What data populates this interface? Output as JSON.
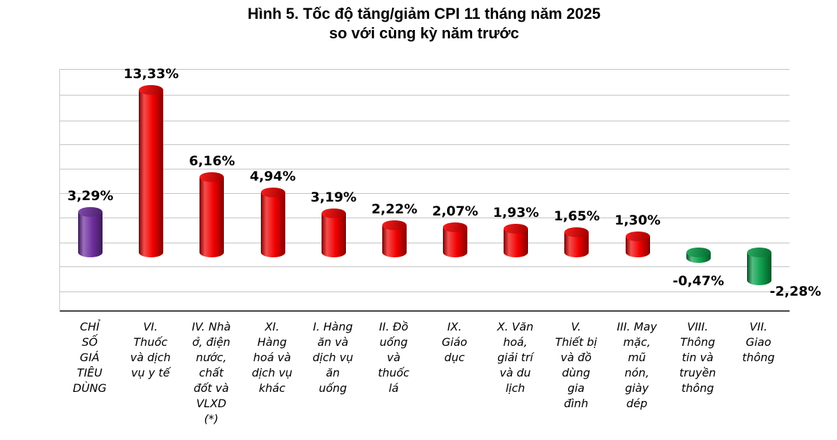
{
  "title": {
    "line1": "Hình 5. Tốc độ tăng/giảm CPI 11 tháng năm 2025",
    "line2": "so với cùng kỳ năm trước"
  },
  "chart_data": {
    "type": "bar",
    "style": "3d-cylinder",
    "title": "Hình 5. Tốc độ tăng/giảm CPI 11 tháng năm 2025 so với cùng kỳ năm trước",
    "xlabel": "",
    "ylabel": "",
    "y_axis_tick_labels_visible": false,
    "grid": true,
    "legend": "none",
    "ylim": [
      -4,
      16
    ],
    "categories": [
      "CHỈ SỐ GIÁ TIÊU DÙNG",
      "VI. Thuốc và dịch vụ y tế",
      "IV. Nhà ở, điện nước, chất đốt và VLXD (*)",
      "XI. Hàng hoá và dịch vụ khác",
      "I. Hàng ăn và dịch vụ ăn uống",
      "II. Đồ uống và thuốc lá",
      "IX. Giáo dục",
      "X. Văn hoá, giải trí và du lịch",
      "V. Thiết bị và đồ dùng gia đình",
      "III. May mặc, mũ nón, giày dép",
      "VIII. Thông tin và truyền thông",
      "VII. Giao thông"
    ],
    "category_lines": [
      [
        "CHỈ",
        "SỐ",
        "GIÁ",
        "TIÊU",
        "DÙNG"
      ],
      [
        "VI.",
        "Thuốc",
        "và dịch",
        "vụ y tế"
      ],
      [
        "IV. Nhà",
        "ở, điện",
        "nước,",
        "chất",
        "đốt và",
        "VLXD",
        "(*)"
      ],
      [
        "XI.",
        "Hàng",
        "hoá và",
        "dịch vụ",
        "khác"
      ],
      [
        "I. Hàng",
        "ăn và",
        "dịch vụ",
        "ăn",
        "uống"
      ],
      [
        "II. Đồ",
        "uống",
        "và",
        "thuốc",
        "lá"
      ],
      [
        "IX.",
        "Giáo",
        "dục"
      ],
      [
        "X. Văn",
        "hoá,",
        "giải trí",
        "và du",
        "lịch"
      ],
      [
        "V.",
        "Thiết bị",
        "và đồ",
        "dùng",
        "gia",
        "đình"
      ],
      [
        "III. May",
        "mặc,",
        "mũ",
        "nón,",
        "giày",
        "dép"
      ],
      [
        "VIII.",
        "Thông",
        "tin và",
        "truyền",
        "thông"
      ],
      [
        "VII.",
        "Giao",
        "thông"
      ]
    ],
    "values": [
      3.29,
      13.33,
      6.16,
      4.94,
      3.19,
      2.22,
      2.07,
      1.93,
      1.65,
      1.3,
      -0.47,
      -2.28
    ],
    "value_labels": [
      "3,29%",
      "13,33%",
      "6,16%",
      "4,94%",
      "3,19%",
      "2,22%",
      "2,07%",
      "1,93%",
      "1,65%",
      "1,30%",
      "-0,47%",
      "-2,28%"
    ],
    "bar_color_roles": [
      "cpi",
      "up",
      "up",
      "up",
      "up",
      "up",
      "up",
      "up",
      "up",
      "up",
      "down",
      "down"
    ],
    "colors": {
      "cpi": "#7030A0",
      "up": "#F20000",
      "down": "#0CA04C",
      "gridline": "#C2C2C2",
      "axis": "#3F3F3F",
      "text": "#000000"
    }
  }
}
